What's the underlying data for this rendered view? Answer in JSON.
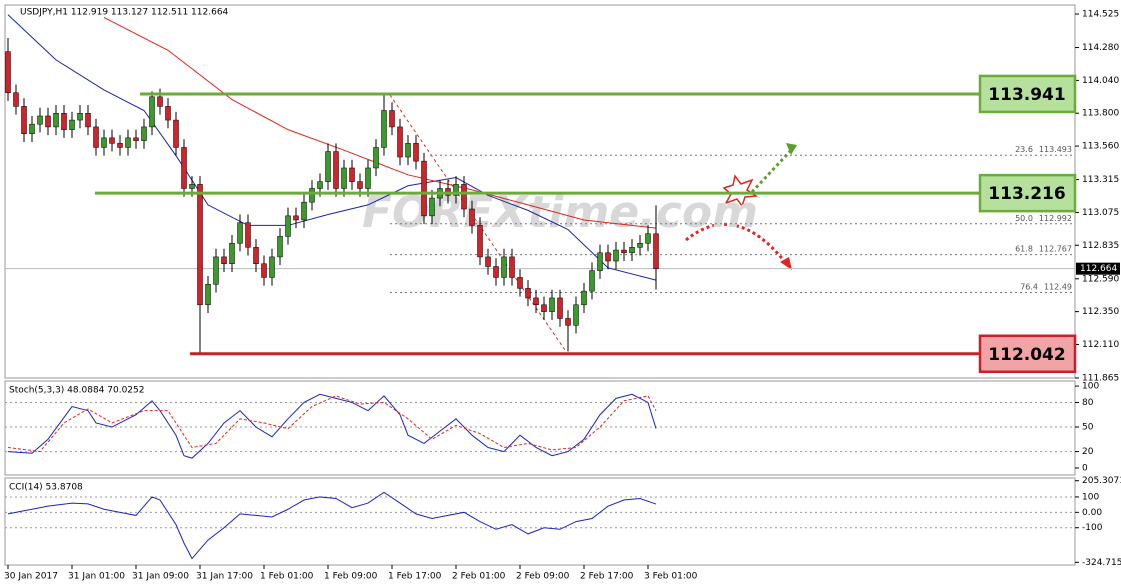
{
  "chart_data": [
    {
      "type": "candlestick",
      "title": "USDJPY,H1 112.919 113.127 112.511 112.664",
      "watermark": "FOREXtime.com",
      "categories": [
        "30 Jan 2017",
        null,
        null,
        null,
        null,
        null,
        null,
        null,
        "31 Jan 01:00",
        null,
        null,
        null,
        null,
        null,
        null,
        null,
        "31 Jan 09:00",
        null,
        null,
        null,
        null,
        null,
        null,
        null,
        "31 Jan 17:00",
        null,
        null,
        null,
        null,
        null,
        null,
        null,
        "1 Feb 01:00",
        null,
        null,
        null,
        null,
        null,
        null,
        null,
        "1 Feb 09:00",
        null,
        null,
        null,
        null,
        null,
        null,
        null,
        "1 Feb 17:00",
        null,
        null,
        null,
        null,
        null,
        null,
        null,
        "2 Feb 01:00",
        null,
        null,
        null,
        null,
        null,
        null,
        null,
        "2 Feb 09:00",
        null,
        null,
        null,
        null,
        null,
        null,
        null,
        "2 Feb 17:00",
        null,
        null,
        null,
        null,
        null,
        null,
        null,
        "3 Feb 01:00",
        null
      ],
      "open": [
        114.25,
        113.95,
        113.85,
        113.65,
        113.72,
        113.78,
        113.7,
        113.8,
        113.68,
        113.75,
        113.8,
        113.7,
        113.55,
        113.62,
        113.58,
        113.55,
        113.62,
        113.6,
        113.7,
        113.92,
        113.85,
        113.75,
        113.55,
        113.25,
        113.28,
        112.4,
        112.55,
        112.75,
        112.7,
        112.85,
        113.0,
        112.82,
        112.7,
        112.6,
        112.75,
        112.9,
        113.05,
        113.02,
        113.15,
        113.25,
        113.3,
        113.52,
        113.25,
        113.4,
        113.3,
        113.25,
        113.4,
        113.55,
        113.82,
        113.7,
        113.48,
        113.58,
        113.45,
        113.05,
        113.18,
        113.25,
        113.2,
        113.28,
        113.1,
        112.98,
        112.75,
        112.68,
        112.6,
        112.75,
        112.6,
        112.52,
        112.45,
        112.4,
        112.35,
        112.45,
        112.3,
        112.25,
        112.4,
        112.5,
        112.65,
        112.78,
        112.72,
        112.8,
        112.78,
        112.82,
        112.85,
        112.919
      ],
      "high": [
        114.35,
        114.01,
        113.91,
        113.78,
        113.84,
        113.84,
        113.86,
        113.86,
        113.81,
        113.86,
        113.86,
        113.76,
        113.68,
        113.68,
        113.64,
        113.68,
        113.68,
        113.76,
        113.96,
        113.98,
        113.91,
        113.81,
        113.61,
        113.34,
        113.34,
        112.61,
        112.81,
        112.81,
        112.91,
        113.06,
        113.06,
        112.88,
        112.76,
        112.81,
        112.96,
        113.11,
        113.11,
        113.21,
        113.31,
        113.36,
        113.58,
        113.58,
        113.46,
        113.46,
        113.36,
        113.46,
        113.61,
        113.95,
        113.88,
        113.76,
        113.64,
        113.64,
        113.51,
        113.24,
        113.31,
        113.31,
        113.34,
        113.34,
        113.16,
        113.04,
        112.81,
        112.74,
        112.81,
        112.81,
        112.66,
        112.58,
        112.51,
        112.46,
        112.51,
        112.51,
        112.36,
        112.46,
        112.56,
        112.71,
        112.84,
        112.84,
        112.86,
        112.86,
        112.88,
        112.91,
        112.98,
        113.127
      ],
      "low": [
        113.89,
        113.79,
        113.59,
        113.59,
        113.66,
        113.64,
        113.64,
        113.62,
        113.62,
        113.69,
        113.64,
        113.49,
        113.49,
        113.52,
        113.49,
        113.49,
        113.54,
        113.54,
        113.64,
        113.79,
        113.69,
        113.49,
        113.19,
        113.19,
        112.05,
        112.34,
        112.49,
        112.64,
        112.64,
        112.79,
        112.76,
        112.64,
        112.54,
        112.54,
        112.69,
        112.84,
        112.96,
        112.96,
        113.09,
        113.19,
        113.24,
        113.19,
        113.19,
        113.24,
        113.19,
        113.19,
        113.34,
        113.49,
        113.64,
        113.42,
        113.42,
        113.39,
        112.99,
        112.99,
        113.12,
        113.14,
        113.14,
        113.04,
        112.92,
        112.69,
        112.62,
        112.54,
        112.54,
        112.54,
        112.46,
        112.39,
        112.34,
        112.29,
        112.29,
        112.24,
        112.06,
        112.19,
        112.34,
        112.44,
        112.59,
        112.66,
        112.66,
        112.72,
        112.72,
        112.76,
        112.79,
        112.511
      ],
      "close": [
        113.95,
        113.85,
        113.65,
        113.72,
        113.78,
        113.7,
        113.8,
        113.68,
        113.75,
        113.8,
        113.7,
        113.55,
        113.62,
        113.58,
        113.55,
        113.62,
        113.6,
        113.7,
        113.92,
        113.85,
        113.75,
        113.55,
        113.25,
        113.28,
        112.4,
        112.55,
        112.75,
        112.7,
        112.85,
        113.0,
        112.82,
        112.7,
        112.6,
        112.75,
        112.9,
        113.05,
        113.02,
        113.15,
        113.25,
        113.3,
        113.52,
        113.25,
        113.4,
        113.3,
        113.25,
        113.4,
        113.55,
        113.82,
        113.7,
        113.48,
        113.58,
        113.45,
        113.05,
        113.18,
        113.25,
        113.2,
        113.28,
        113.1,
        112.98,
        112.75,
        112.68,
        112.6,
        112.75,
        112.6,
        112.52,
        112.45,
        112.4,
        112.35,
        112.45,
        112.3,
        112.25,
        112.4,
        112.5,
        112.65,
        112.78,
        112.72,
        112.8,
        112.78,
        112.82,
        112.85,
        112.92,
        112.664
      ],
      "up_color": "#3a9a2a",
      "down_color": "#d0232b",
      "series": [
        {
          "color": "#1a23a8",
          "x": [
            0,
            6,
            12,
            17,
            21,
            25,
            30,
            35,
            40,
            45,
            50,
            56,
            60,
            65,
            70,
            75,
            81
          ],
          "values": [
            114.52,
            114.19,
            113.97,
            113.82,
            113.49,
            113.13,
            112.98,
            112.98,
            113.06,
            113.13,
            113.27,
            113.33,
            113.2,
            113.09,
            112.95,
            112.67,
            112.58
          ]
        },
        {
          "color": "#e0261e",
          "x": [
            12,
            20,
            28,
            35,
            42,
            50,
            58,
            65,
            72,
            81
          ],
          "values": [
            114.5,
            114.26,
            113.9,
            113.68,
            113.53,
            113.35,
            113.24,
            113.13,
            113.02,
            112.96
          ]
        }
      ],
      "ylim": [
        111.865,
        114.591
      ],
      "yticks": [
        114.525,
        {
          "value": 114.28,
          "label": "114.280"
        },
        {
          "value": 114.04,
          "label": "114.040"
        },
        {
          "value": 113.8,
          "label": "113.800"
        },
        {
          "value": 113.56,
          "label": "113.560"
        },
        113.315,
        113.075,
        112.835,
        {
          "value": 112.59,
          "label": "112.590"
        },
        {
          "value": 112.35,
          "label": "112.350"
        },
        {
          "value": 112.11,
          "label": "112.110"
        },
        111.865
      ],
      "levels": [
        {
          "value": 113.941,
          "color": "#6aab3a",
          "fill": "#b6e19c"
        },
        {
          "value": 113.216,
          "color": "#6aab3a",
          "fill": "#b6e19c"
        },
        {
          "value": 112.042,
          "color": "#c8202a",
          "fill": "#f2a3a5"
        }
      ],
      "fib": [
        {
          "ratio": "23.6",
          "value": 113.493
        },
        {
          "ratio": "50.0",
          "value": 112.992
        },
        {
          "ratio": "61.8",
          "value": 112.767
        },
        {
          "ratio": "76.4",
          "value": 112.49
        }
      ],
      "last_price": 112.664
    },
    {
      "type": "line",
      "title": "Stoch(5,3,3) 48.0884 70.0252",
      "ylim": [
        -8.6,
        106.2
      ],
      "yticks": [
        100,
        80,
        50,
        20,
        0
      ],
      "levels": [
        80,
        50,
        20
      ],
      "series": [
        {
          "color": "#1a23c8",
          "x": [
            0,
            3,
            5,
            8,
            10,
            11,
            13,
            16,
            18,
            19,
            21,
            22,
            23,
            25,
            27,
            29,
            31,
            33,
            35,
            37,
            39,
            41,
            43,
            45,
            47,
            49,
            50,
            52,
            54,
            56,
            58,
            60,
            62,
            64,
            66,
            68,
            70,
            72,
            74,
            76,
            78,
            80,
            81
          ],
          "values": [
            20,
            18,
            35,
            75,
            70,
            55,
            50,
            65,
            82,
            70,
            40,
            15,
            12,
            30,
            55,
            70,
            50,
            38,
            60,
            80,
            90,
            85,
            80,
            70,
            88,
            65,
            40,
            30,
            45,
            60,
            40,
            25,
            20,
            40,
            25,
            15,
            20,
            35,
            65,
            85,
            90,
            80,
            48.0884
          ]
        },
        {
          "color": "#e0261e",
          "dashed": true,
          "x": [
            0,
            4,
            7,
            10,
            13,
            17,
            20,
            23,
            26,
            29,
            32,
            35,
            38,
            41,
            44,
            47,
            50,
            53,
            56,
            59,
            62,
            65,
            68,
            71,
            74,
            77,
            80,
            81
          ],
          "values": [
            25,
            20,
            55,
            72,
            55,
            70,
            70,
            25,
            30,
            60,
            55,
            48,
            75,
            88,
            78,
            80,
            60,
            35,
            52,
            42,
            25,
            30,
            22,
            25,
            50,
            82,
            88,
            70.0252
          ]
        }
      ]
    },
    {
      "type": "line",
      "title": "CCI(14) 53.8708",
      "ylim": [
        -342,
        223
      ],
      "yticks": [
        205.3071,
        100,
        {
          "value": 0,
          "label": "0.00"
        },
        -100,
        -324.7154
      ],
      "levels": [
        100,
        0,
        -100
      ],
      "series": [
        {
          "color": "#1a23c8",
          "x": [
            0,
            2,
            5,
            8,
            10,
            12,
            14,
            16,
            17,
            18,
            19,
            21,
            22,
            23,
            25,
            27,
            29,
            31,
            33,
            35,
            37,
            39,
            41,
            43,
            45,
            47,
            49,
            51,
            53,
            55,
            57,
            59,
            61,
            63,
            65,
            67,
            69,
            71,
            73,
            75,
            77,
            79,
            81
          ],
          "values": [
            -10,
            10,
            40,
            60,
            55,
            20,
            0,
            -20,
            40,
            100,
            80,
            -80,
            -200,
            -300,
            -180,
            -100,
            -10,
            -20,
            -30,
            20,
            80,
            100,
            90,
            30,
            60,
            130,
            60,
            -10,
            -40,
            -20,
            0,
            -60,
            -110,
            -80,
            -140,
            -100,
            -110,
            -60,
            -40,
            40,
            80,
            90,
            53.8708
          ]
        }
      ]
    }
  ]
}
